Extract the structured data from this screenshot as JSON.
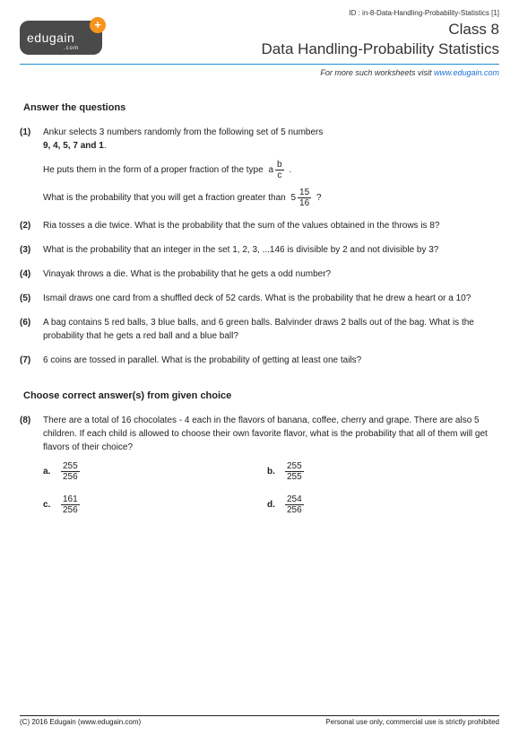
{
  "id_line": "ID : in-8-Data-Handling-Probability-Statistics [1]",
  "logo": {
    "name": "edugain",
    "dotcom": ".com",
    "plus": "+"
  },
  "title": {
    "class_line": "Class 8",
    "subject_line": "Data Handling-Probability Statistics"
  },
  "visit": {
    "prefix": "For more such worksheets visit ",
    "link": "www.edugain.com"
  },
  "section1_title": "Answer the questions",
  "q1": {
    "num": "(1)",
    "line1": "Ankur selects 3 numbers randomly from the following set of 5 numbers",
    "line2": "9, 4, 5, 7 and 1",
    "line2_suffix": ".",
    "line3_pre": "He puts them in the form of a proper fraction of the type  ",
    "frac1": {
      "a": "a",
      "b": "b",
      "c": "c"
    },
    "line3_post": " .",
    "line4_pre": "What is the probability that you will get a fraction greater than  ",
    "frac2": {
      "a": "5",
      "b": "15",
      "c": "16"
    },
    "line4_post": "  ?"
  },
  "q2": {
    "num": "(2)",
    "text": "Ria tosses a die twice. What is the probability that the sum of the values obtained in the throws is 8?"
  },
  "q3": {
    "num": "(3)",
    "text": "What is the probability that an integer in the set 1, 2, 3, ...146 is divisible by 2 and not divisible by 3?"
  },
  "q4": {
    "num": "(4)",
    "text": "Vinayak throws a die. What is the probability that he gets a odd number?"
  },
  "q5": {
    "num": "(5)",
    "text": "Ismail draws one card from a shuffled deck of 52 cards. What is the probability that he drew a heart or a 10?"
  },
  "q6": {
    "num": "(6)",
    "text": "A bag contains 5 red balls, 3 blue balls, and 6 green balls. Balvinder draws 2 balls out of the bag. What is the probability that he gets a red ball and a blue ball?"
  },
  "q7": {
    "num": "(7)",
    "text": "6 coins are tossed in parallel. What is the probability of getting at least one tails?"
  },
  "section2_title": "Choose correct answer(s) from given choice",
  "q8": {
    "num": "(8)",
    "text": "There are a total of 16 chocolates - 4 each in the flavors of banana, coffee, cherry and grape. There are also 5 children. If each child is allowed to choose their own favorite flavor, what is the probability that all of them will get flavors of their choice?",
    "choices": {
      "a": {
        "lbl": "a.",
        "num": "255",
        "den": "256"
      },
      "b": {
        "lbl": "b.",
        "num": "255",
        "den": "255"
      },
      "c": {
        "lbl": "c.",
        "num": "161",
        "den": "256"
      },
      "d": {
        "lbl": "d.",
        "num": "254",
        "den": "256"
      }
    }
  },
  "footer": {
    "left": "(C) 2016 Edugain (www.edugain.com)",
    "right": "Personal use only, commercial use is strictly prohibited"
  },
  "colors": {
    "rule": "#1f8dd6",
    "link": "#1f6fd6",
    "logo_bg": "#4a4a4a",
    "plus_bg": "#f7941d"
  }
}
